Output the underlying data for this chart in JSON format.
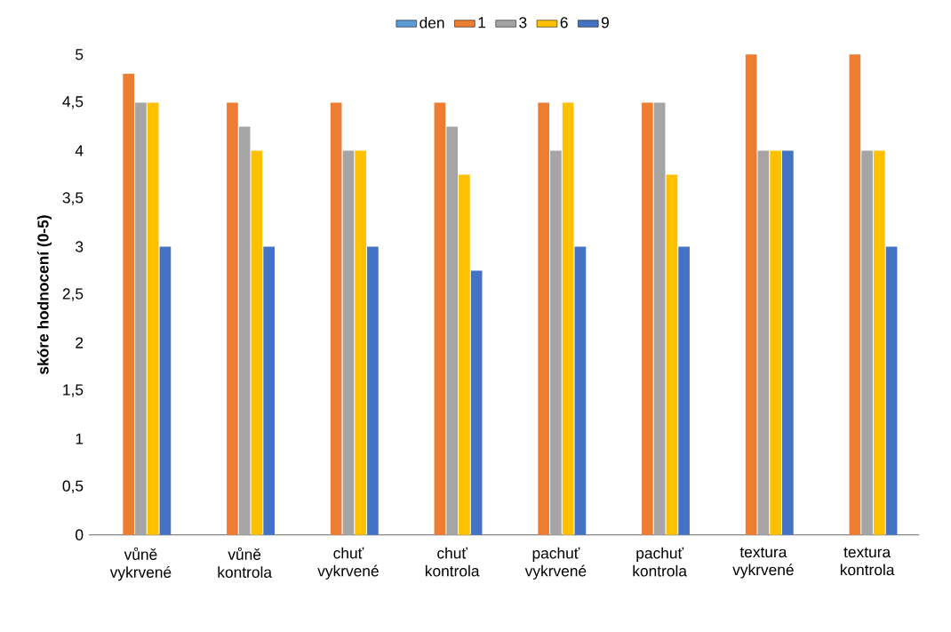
{
  "chart_data": {
    "type": "bar",
    "ylabel": "skóre hodnocení (0-5)",
    "categories": [
      "vůně vykrvené",
      "vůně kontrola",
      "chuť vykrvené",
      "chuť kontrola",
      "pachuť vykrvené",
      "pachuť kontrola",
      "textura vykrvené",
      "textura kontrola"
    ],
    "series": [
      {
        "name": "den",
        "color": "#5b9bd5",
        "values": [
          null,
          null,
          null,
          null,
          null,
          null,
          null,
          null
        ]
      },
      {
        "name": "1",
        "color": "#ed7d31",
        "values": [
          4.8,
          4.5,
          4.5,
          4.5,
          4.5,
          4.5,
          5,
          5
        ]
      },
      {
        "name": "3",
        "color": "#a5a5a5",
        "values": [
          4.5,
          4.25,
          4,
          4.25,
          4,
          4.5,
          4,
          4
        ]
      },
      {
        "name": "6",
        "color": "#ffc000",
        "values": [
          4.5,
          4,
          4,
          3.75,
          4.5,
          3.75,
          4,
          4
        ]
      },
      {
        "name": "9",
        "color": "#4472c4",
        "values": [
          3,
          3,
          3,
          2.75,
          3,
          3,
          4,
          3
        ]
      }
    ],
    "ylim": [
      0,
      5
    ],
    "yticks": [
      0,
      {
        "value": 0.5,
        "label": "0,5"
      },
      1,
      {
        "value": 1.5,
        "label": "1,5"
      },
      2,
      {
        "value": 2.5,
        "label": "2,5"
      },
      3,
      {
        "value": 3.5,
        "label": "3,5"
      },
      4,
      {
        "value": 4.5,
        "label": "4,5"
      },
      5
    ],
    "grid": false,
    "legend": "top"
  }
}
